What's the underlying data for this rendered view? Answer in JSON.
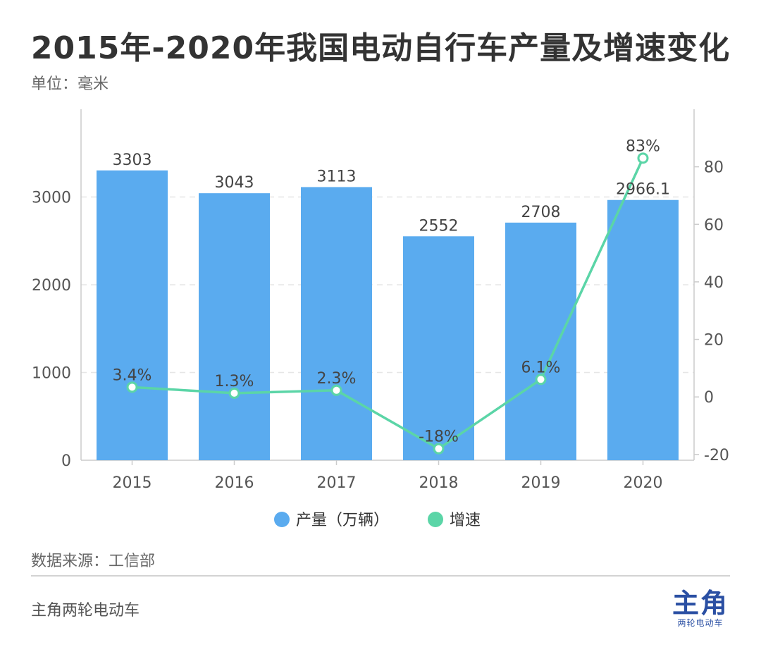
{
  "title": "2015年-2020年我国电动自行车产量及增速变化",
  "unit_label": "单位：毫米",
  "source": "数据来源：工信部",
  "brand": "主角两轮电动车",
  "logo": {
    "main": "主角",
    "sub": "两轮电动车"
  },
  "colors": {
    "bar": "#5aabef",
    "line": "#5bd5a7",
    "axis": "#cccccc",
    "grid": "#e6e6e6",
    "text": "#555555"
  },
  "chart_data": {
    "type": "bar",
    "categories": [
      "2015",
      "2016",
      "2017",
      "2018",
      "2019",
      "2020"
    ],
    "series": [
      {
        "name": "产量（万辆）",
        "kind": "bar",
        "axis": "left",
        "values": [
          3303,
          3043,
          3113,
          2552,
          2708,
          2966.1
        ],
        "labels": [
          "3303",
          "3043",
          "3113",
          "2552",
          "2708",
          "2966.1"
        ]
      },
      {
        "name": "增速",
        "kind": "line",
        "axis": "right",
        "values": [
          3.4,
          1.3,
          2.3,
          -18,
          6.1,
          83
        ],
        "labels": [
          "3.4%",
          "1.3%",
          "2.3%",
          "-18%",
          "6.1%",
          "83%"
        ]
      }
    ],
    "y_left": {
      "min": 0,
      "max": 4000,
      "ticks": [
        "0",
        "1000",
        "2000",
        "3000"
      ]
    },
    "y_right": {
      "min": -22,
      "max": 100,
      "ticks": [
        "-20",
        "0",
        "20",
        "40",
        "60",
        "80"
      ]
    },
    "legend": {
      "position": "bottom",
      "entries": [
        "产量（万辆）",
        "增速"
      ]
    }
  }
}
